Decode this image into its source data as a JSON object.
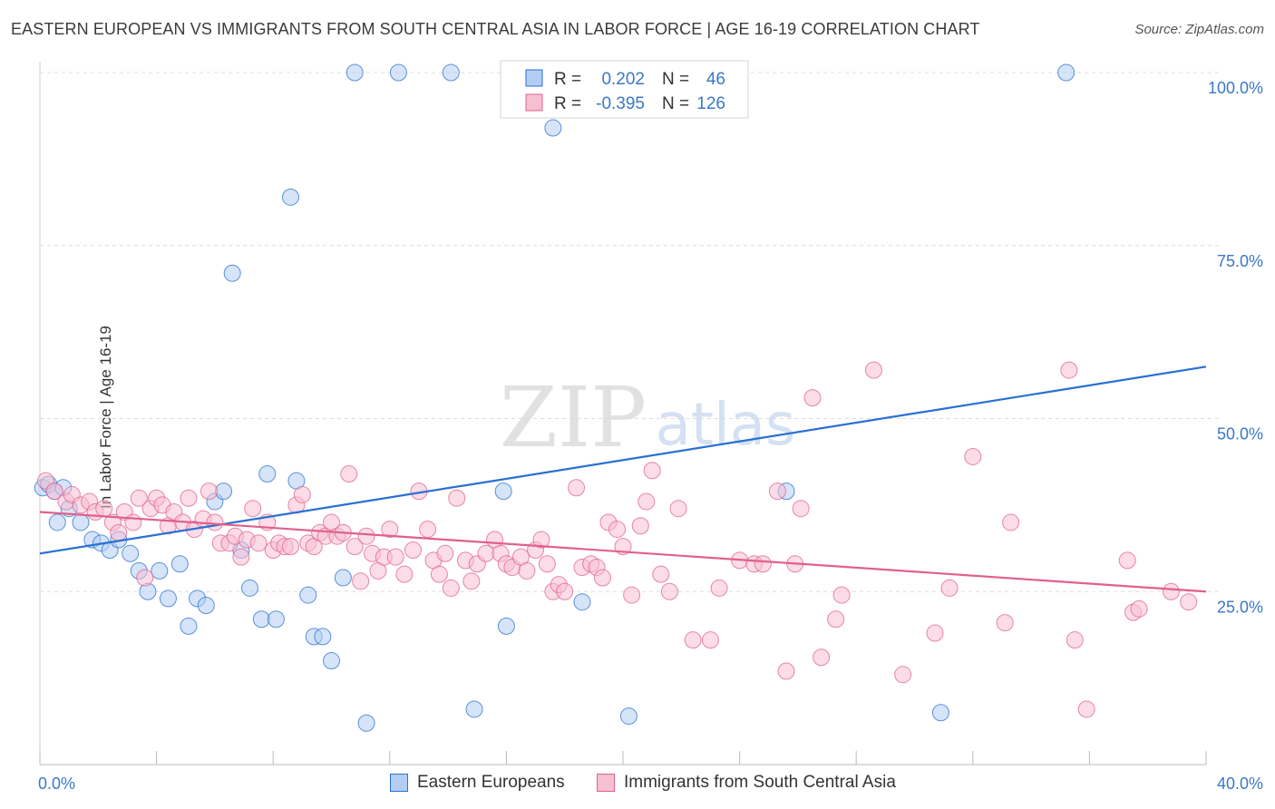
{
  "header": {
    "title": "EASTERN EUROPEAN VS IMMIGRANTS FROM SOUTH CENTRAL ASIA IN LABOR FORCE | AGE 16-19 CORRELATION CHART",
    "source": "Source: ZipAtlas.com"
  },
  "watermark": {
    "zip": "ZIP",
    "atlas": "atlas"
  },
  "colors": {
    "blue": "#2970d2",
    "blue_fill": "#b3cdf2",
    "pink": "#e0608e",
    "pink_fill": "#f7bfd3",
    "axis_text": "#3a78c8"
  },
  "chart_data": {
    "type": "scatter",
    "ylabel": "In Labor Force | Age 16-19",
    "xlim": [
      0,
      40
    ],
    "ylim": [
      0,
      100
    ],
    "x_tick_labels": [
      "0.0%",
      "40.0%"
    ],
    "y_tick_labels": [
      {
        "value": 100,
        "label": "100.0%"
      },
      {
        "value": 75,
        "label": "75.0%"
      },
      {
        "value": 50,
        "label": "50.0%"
      },
      {
        "value": 25,
        "label": "25.0%"
      }
    ],
    "legend": {
      "placement": "top-center",
      "rows": [
        {
          "r_label": "R =",
          "r_value": "0.202",
          "n_label": "N =",
          "n_value": "46"
        },
        {
          "r_label": "R =",
          "r_value": "-0.395",
          "n_label": "N =",
          "n_value": "126"
        }
      ]
    },
    "series": [
      {
        "name": "Eastern Europeans",
        "color": "#2970d2",
        "trend": {
          "x": [
            0,
            40
          ],
          "y": [
            30.5,
            57.5
          ]
        },
        "points": [
          [
            0.1,
            40
          ],
          [
            0.3,
            40.5
          ],
          [
            0.5,
            39.5
          ],
          [
            0.6,
            35
          ],
          [
            0.8,
            40
          ],
          [
            1.0,
            37
          ],
          [
            1.4,
            35
          ],
          [
            1.8,
            32.5
          ],
          [
            2.1,
            32
          ],
          [
            2.4,
            31
          ],
          [
            2.7,
            32.5
          ],
          [
            3.1,
            30.5
          ],
          [
            3.4,
            28
          ],
          [
            3.7,
            25
          ],
          [
            4.1,
            28
          ],
          [
            4.4,
            24
          ],
          [
            4.8,
            29
          ],
          [
            5.1,
            20
          ],
          [
            5.4,
            24
          ],
          [
            5.7,
            23
          ],
          [
            6.0,
            38
          ],
          [
            6.3,
            39.5
          ],
          [
            6.6,
            71
          ],
          [
            6.9,
            31
          ],
          [
            7.2,
            25.5
          ],
          [
            7.6,
            21
          ],
          [
            7.8,
            42
          ],
          [
            8.1,
            21
          ],
          [
            8.6,
            82
          ],
          [
            8.8,
            41
          ],
          [
            9.2,
            24.5
          ],
          [
            9.4,
            18.5
          ],
          [
            9.7,
            18.5
          ],
          [
            10.0,
            15
          ],
          [
            10.4,
            27
          ],
          [
            10.8,
            100
          ],
          [
            11.2,
            6
          ],
          [
            12.3,
            100
          ],
          [
            14.1,
            100
          ],
          [
            14.9,
            8
          ],
          [
            15.9,
            39.5
          ],
          [
            16.0,
            20
          ],
          [
            17.6,
            92
          ],
          [
            18.6,
            23.5
          ],
          [
            20.2,
            7
          ],
          [
            25.6,
            39.5
          ],
          [
            30.9,
            7.5
          ],
          [
            35.2,
            100
          ]
        ]
      },
      {
        "name": "Immigrants from South Central Asia",
        "color": "#e0608e",
        "trend": {
          "x": [
            0,
            40
          ],
          "y": [
            36.5,
            25
          ]
        },
        "points": [
          [
            0.2,
            41
          ],
          [
            0.5,
            39.5
          ],
          [
            0.9,
            38
          ],
          [
            1.1,
            39
          ],
          [
            1.4,
            37.5
          ],
          [
            1.7,
            38
          ],
          [
            1.9,
            36.5
          ],
          [
            2.2,
            37
          ],
          [
            2.5,
            35
          ],
          [
            2.7,
            33.5
          ],
          [
            2.9,
            36.5
          ],
          [
            3.2,
            35
          ],
          [
            3.4,
            38.5
          ],
          [
            3.6,
            27
          ],
          [
            3.8,
            37
          ],
          [
            4.0,
            38.5
          ],
          [
            4.2,
            37.5
          ],
          [
            4.4,
            34.5
          ],
          [
            4.6,
            36.5
          ],
          [
            4.9,
            35
          ],
          [
            5.1,
            38.5
          ],
          [
            5.3,
            34
          ],
          [
            5.6,
            35.5
          ],
          [
            5.8,
            39.5
          ],
          [
            6.0,
            35
          ],
          [
            6.2,
            32
          ],
          [
            6.5,
            32
          ],
          [
            6.7,
            33
          ],
          [
            6.9,
            30
          ],
          [
            7.1,
            32.5
          ],
          [
            7.3,
            37
          ],
          [
            7.5,
            32
          ],
          [
            7.8,
            35
          ],
          [
            8.0,
            31
          ],
          [
            8.2,
            32
          ],
          [
            8.4,
            31.5
          ],
          [
            8.6,
            31.5
          ],
          [
            8.8,
            37.5
          ],
          [
            9.0,
            39
          ],
          [
            9.2,
            32
          ],
          [
            9.4,
            31.5
          ],
          [
            9.6,
            33.5
          ],
          [
            9.8,
            33
          ],
          [
            10.0,
            35
          ],
          [
            10.2,
            33
          ],
          [
            10.4,
            33.5
          ],
          [
            10.6,
            42
          ],
          [
            10.8,
            31.5
          ],
          [
            11.0,
            26.5
          ],
          [
            11.2,
            33
          ],
          [
            11.4,
            30.5
          ],
          [
            11.6,
            28
          ],
          [
            11.8,
            30
          ],
          [
            12.0,
            34
          ],
          [
            12.2,
            30
          ],
          [
            12.5,
            27.5
          ],
          [
            12.8,
            31
          ],
          [
            13.0,
            39.5
          ],
          [
            13.3,
            34
          ],
          [
            13.5,
            29.5
          ],
          [
            13.7,
            27.5
          ],
          [
            13.9,
            30.5
          ],
          [
            14.1,
            25.5
          ],
          [
            14.3,
            38.5
          ],
          [
            14.6,
            29.5
          ],
          [
            14.8,
            26.5
          ],
          [
            15.0,
            29
          ],
          [
            15.3,
            30.5
          ],
          [
            15.6,
            32.5
          ],
          [
            15.8,
            30.5
          ],
          [
            16.0,
            29
          ],
          [
            16.2,
            28.5
          ],
          [
            16.5,
            30
          ],
          [
            16.7,
            28
          ],
          [
            17.0,
            31
          ],
          [
            17.2,
            32.5
          ],
          [
            17.4,
            29
          ],
          [
            17.6,
            25
          ],
          [
            17.8,
            26
          ],
          [
            18.0,
            25
          ],
          [
            18.4,
            40
          ],
          [
            18.6,
            28.5
          ],
          [
            18.9,
            29
          ],
          [
            19.1,
            28.5
          ],
          [
            19.3,
            27
          ],
          [
            19.5,
            35
          ],
          [
            19.8,
            34
          ],
          [
            20.0,
            31.5
          ],
          [
            20.3,
            24.5
          ],
          [
            20.6,
            34.5
          ],
          [
            20.8,
            38
          ],
          [
            21.0,
            42.5
          ],
          [
            21.3,
            27.5
          ],
          [
            21.6,
            25
          ],
          [
            21.9,
            37
          ],
          [
            22.4,
            18
          ],
          [
            23.0,
            18
          ],
          [
            23.3,
            25.5
          ],
          [
            24.0,
            29.5
          ],
          [
            24.5,
            29
          ],
          [
            24.8,
            29
          ],
          [
            25.3,
            39.5
          ],
          [
            25.6,
            13.5
          ],
          [
            25.9,
            29
          ],
          [
            26.1,
            37
          ],
          [
            26.5,
            53
          ],
          [
            26.8,
            15.5
          ],
          [
            27.3,
            21
          ],
          [
            27.5,
            24.5
          ],
          [
            28.6,
            57
          ],
          [
            29.6,
            13
          ],
          [
            30.7,
            19
          ],
          [
            31.2,
            25.5
          ],
          [
            32.0,
            44.5
          ],
          [
            33.1,
            20.5
          ],
          [
            33.3,
            35
          ],
          [
            35.3,
            57
          ],
          [
            35.5,
            18
          ],
          [
            35.9,
            8
          ],
          [
            37.3,
            29.5
          ],
          [
            37.5,
            22
          ],
          [
            37.7,
            22.5
          ],
          [
            38.8,
            25
          ],
          [
            39.4,
            23.5
          ]
        ]
      }
    ]
  }
}
